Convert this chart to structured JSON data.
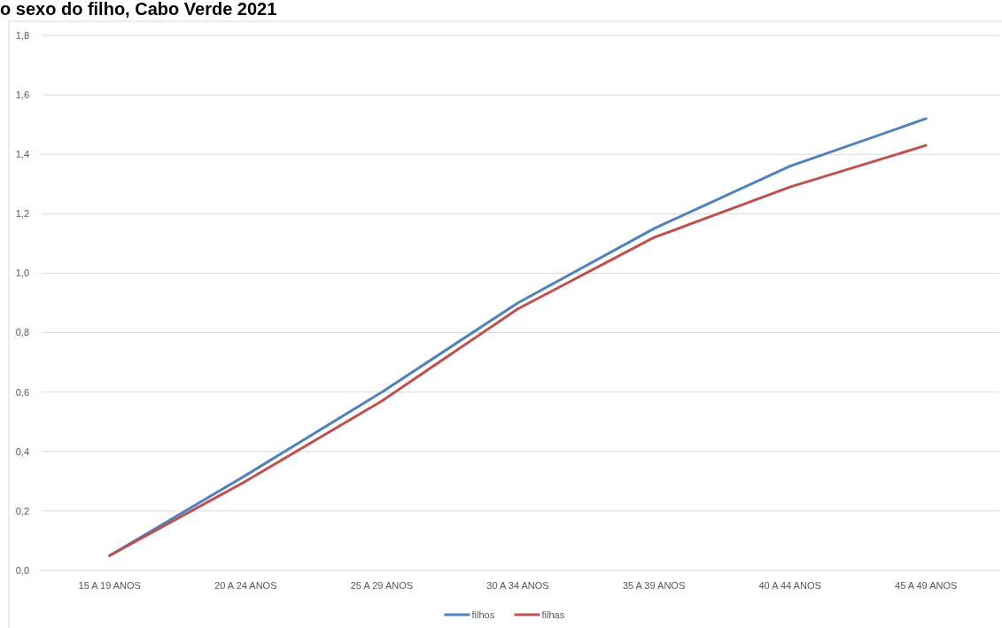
{
  "chart_data": {
    "type": "line",
    "title": "o sexo do filho, Cabo Verde 2021",
    "categories": [
      "15 A 19 ANOS",
      "20 A 24 ANOS",
      "25 A 29 ANOS",
      "30 A 34 ANOS",
      "35 A 39 ANOS",
      "40 A 44 ANOS",
      "45 A 49 ANOS"
    ],
    "series": [
      {
        "name": "filhos",
        "color": "#4f81bd",
        "values": [
          0.05,
          0.32,
          0.6,
          0.9,
          1.15,
          1.36,
          1.52
        ]
      },
      {
        "name": "filhas",
        "color": "#c0504d",
        "values": [
          0.05,
          0.3,
          0.57,
          0.88,
          1.12,
          1.29,
          1.43
        ]
      }
    ],
    "ylim": [
      0,
      1.8
    ],
    "yticks": [
      {
        "value": 0,
        "label": "0,0"
      },
      {
        "value": 0.2,
        "label": "0,2"
      },
      {
        "value": 0.4,
        "label": "0,4"
      },
      {
        "value": 0.6,
        "label": "0,6"
      },
      {
        "value": 0.8,
        "label": "0,8"
      },
      {
        "value": 1,
        "label": "1,0"
      },
      {
        "value": 1.2,
        "label": "1,2"
      },
      {
        "value": 1.4,
        "label": "1,4"
      },
      {
        "value": 1.6,
        "label": "1,6"
      },
      {
        "value": 1.8,
        "label": "1,8"
      }
    ],
    "grid": "y",
    "legend": "bottom",
    "marker": "none",
    "line_style": "solid"
  }
}
